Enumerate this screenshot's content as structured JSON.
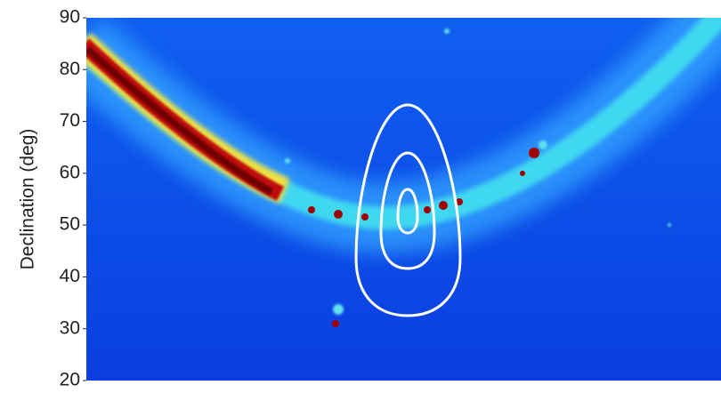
{
  "chart_data": {
    "type": "image",
    "ylabel": "Declination (deg)",
    "ylim": [
      20,
      90
    ],
    "yticks": [
      20,
      30,
      40,
      50,
      60,
      70,
      80,
      90
    ]
  }
}
